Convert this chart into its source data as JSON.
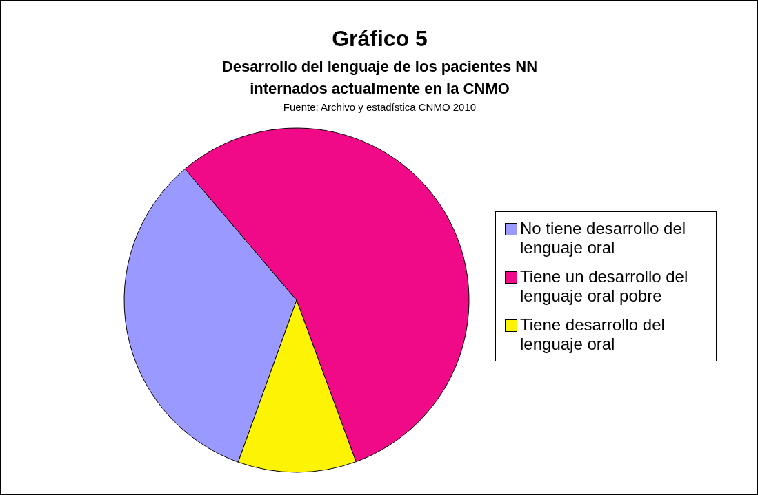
{
  "chart_data": {
    "type": "pie",
    "title": "Gráfico 5",
    "subtitle": "Desarrollo del lenguaje de los pacientes NN\ninternados actualmente en la CNMO",
    "annotations": [
      "Fuente: Archivo y estadística CNMO 2010"
    ],
    "categories": [
      "No tiene desarrollo del lenguaje oral",
      "Tiene un desarrollo del lenguaje oral pobre",
      "Tiene desarrollo del lenguaje oral"
    ],
    "values": [
      33.3,
      55.6,
      11.1
    ],
    "colors": [
      "#9999ff",
      "#f00a88",
      "#fcf305"
    ],
    "legend": "right"
  }
}
